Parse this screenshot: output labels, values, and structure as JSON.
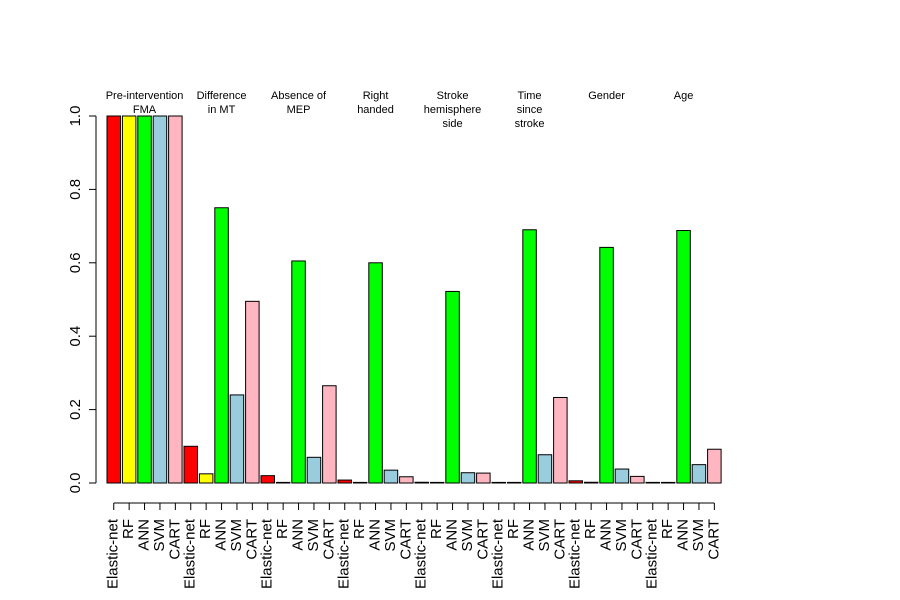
{
  "chart_data": {
    "type": "bar",
    "title": "",
    "xlabel": "",
    "ylabel": "",
    "ylim": [
      0,
      1
    ],
    "yticks": [
      "0.0",
      "0.2",
      "0.4",
      "0.6",
      "0.8",
      "1.0"
    ],
    "grid": false,
    "legend": "none",
    "methods": [
      "Elastic-net",
      "RF",
      "ANN",
      "SVM",
      "CART"
    ],
    "method_colors": [
      "#ff0000",
      "#ffff00",
      "#00ff00",
      "#99ccdd",
      "#ffb6c1"
    ],
    "groups": [
      {
        "label_lines": [
          "Pre-intervention",
          "FMA"
        ],
        "values": [
          1.0,
          1.0,
          1.0,
          1.0,
          1.0
        ]
      },
      {
        "label_lines": [
          "Difference",
          "in MT"
        ],
        "values": [
          0.1,
          0.025,
          0.75,
          0.24,
          0.495
        ]
      },
      {
        "label_lines": [
          "Absence of",
          "MEP"
        ],
        "values": [
          0.02,
          0.0,
          0.605,
          0.07,
          0.265
        ]
      },
      {
        "label_lines": [
          "Right",
          "handed"
        ],
        "values": [
          0.008,
          0.0,
          0.6,
          0.035,
          0.017
        ]
      },
      {
        "label_lines": [
          "Stroke",
          "hemisphere",
          "side"
        ],
        "values": [
          0.002,
          0.0,
          0.522,
          0.028,
          0.027
        ]
      },
      {
        "label_lines": [
          "Time",
          "since",
          "stroke"
        ],
        "values": [
          0.001,
          0.0,
          0.69,
          0.077,
          0.233
        ]
      },
      {
        "label_lines": [
          "Gender"
        ],
        "values": [
          0.006,
          0.002,
          0.642,
          0.038,
          0.018
        ]
      },
      {
        "label_lines": [
          "Age"
        ],
        "values": [
          0.0,
          0.001,
          0.688,
          0.05,
          0.092
        ]
      }
    ]
  }
}
